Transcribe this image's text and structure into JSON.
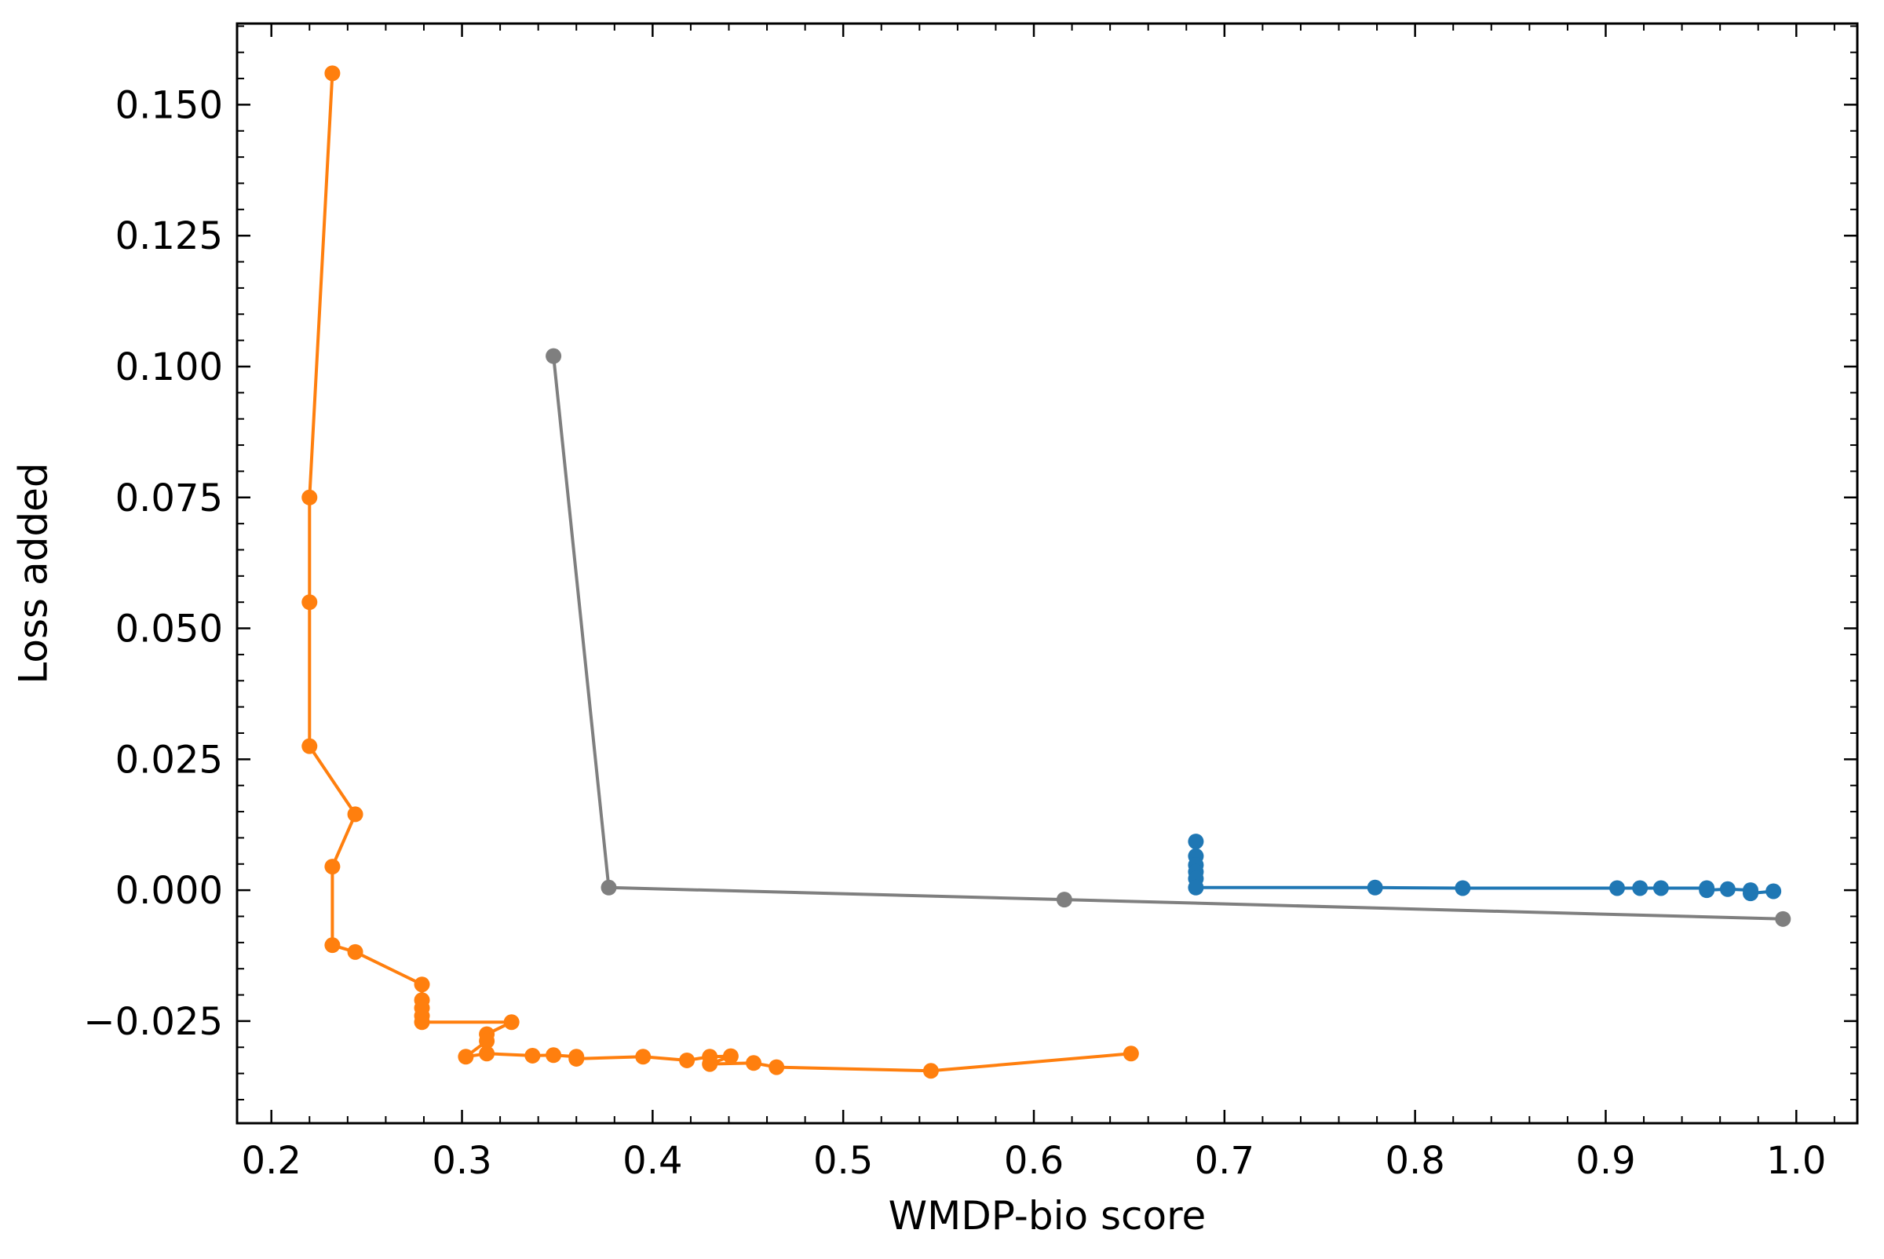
{
  "chart_data": {
    "type": "line",
    "xlabel": "WMDP-bio score",
    "ylabel": "Loss added",
    "xlim": [
      0.182,
      1.032
    ],
    "ylim": [
      -0.0445,
      0.1655
    ],
    "x_ticks": [
      0.2,
      0.3,
      0.4,
      0.5,
      0.6,
      0.7,
      0.8,
      0.9,
      1.0
    ],
    "x_tick_labels": [
      "0.2",
      "0.3",
      "0.4",
      "0.5",
      "0.6",
      "0.7",
      "0.8",
      "0.9",
      "1.0"
    ],
    "y_ticks": [
      -0.025,
      0.0,
      0.025,
      0.05,
      0.075,
      0.1,
      0.125,
      0.15
    ],
    "y_tick_labels": [
      "−0.025",
      "0.000",
      "0.025",
      "0.050",
      "0.075",
      "0.100",
      "0.125",
      "0.150"
    ],
    "grid": false,
    "markers": true,
    "series": [
      {
        "color": "#ff7f0e",
        "points": [
          [
            0.232,
            0.156
          ],
          [
            0.22,
            0.075
          ],
          [
            0.22,
            0.055
          ],
          [
            0.22,
            0.0275
          ],
          [
            0.244,
            0.0145
          ],
          [
            0.232,
            0.0045
          ],
          [
            0.232,
            -0.0105
          ],
          [
            0.244,
            -0.0118
          ],
          [
            0.279,
            -0.018
          ],
          [
            0.279,
            -0.021
          ],
          [
            0.279,
            -0.0225
          ],
          [
            0.279,
            -0.024
          ],
          [
            0.279,
            -0.0252
          ],
          [
            0.326,
            -0.0252
          ],
          [
            0.313,
            -0.0275
          ],
          [
            0.313,
            -0.0288
          ],
          [
            0.302,
            -0.0318
          ],
          [
            0.313,
            -0.0312
          ],
          [
            0.337,
            -0.0316
          ],
          [
            0.348,
            -0.0315
          ],
          [
            0.36,
            -0.0318
          ],
          [
            0.36,
            -0.0322
          ],
          [
            0.395,
            -0.0318
          ],
          [
            0.418,
            -0.0325
          ],
          [
            0.43,
            -0.0318
          ],
          [
            0.441,
            -0.0317
          ],
          [
            0.43,
            -0.0332
          ],
          [
            0.453,
            -0.033
          ],
          [
            0.465,
            -0.0338
          ],
          [
            0.546,
            -0.0345
          ],
          [
            0.651,
            -0.0312
          ]
        ]
      },
      {
        "color": "#7f7f7f",
        "points": [
          [
            0.348,
            0.102
          ],
          [
            0.377,
            0.0005
          ],
          [
            0.616,
            -0.0018
          ],
          [
            0.993,
            -0.0055
          ]
        ]
      },
      {
        "color": "#1f77b4",
        "points": [
          [
            0.685,
            0.0093
          ],
          [
            0.685,
            0.0065
          ],
          [
            0.685,
            0.0048
          ],
          [
            0.685,
            0.0035
          ],
          [
            0.685,
            0.0022
          ],
          [
            0.685,
            0.0005
          ],
          [
            0.779,
            0.0005
          ],
          [
            0.825,
            0.0004
          ],
          [
            0.906,
            0.0004
          ],
          [
            0.918,
            0.0004
          ],
          [
            0.929,
            0.0004
          ],
          [
            0.953,
            0.0004
          ],
          [
            0.953,
            0.0
          ],
          [
            0.964,
            0.0002
          ],
          [
            0.976,
            0.0
          ],
          [
            0.976,
            -0.0006
          ],
          [
            0.988,
            -0.0002
          ]
        ]
      }
    ]
  }
}
